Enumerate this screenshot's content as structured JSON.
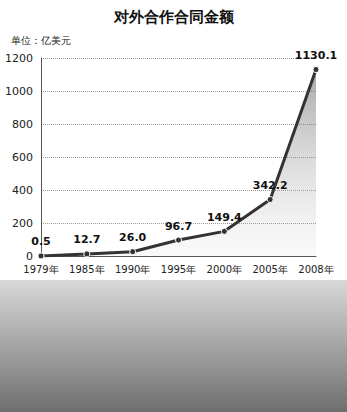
{
  "chart_data": {
    "type": "line",
    "title": "对外合作合同金额",
    "ylabel": "单位：亿美元",
    "categories": [
      "1979年",
      "1985年",
      "1990年",
      "1995年",
      "2000年",
      "2005年",
      "2008年"
    ],
    "values": [
      0.5,
      12.7,
      26.0,
      96.7,
      149.4,
      342.2,
      1130.1
    ],
    "value_labels": [
      "0.5",
      "12.7",
      "26.0",
      "96.7",
      "149.4",
      "342.2",
      "1130.1"
    ],
    "color": "#333333",
    "ylim": [
      0,
      1200
    ],
    "yticks": [
      0,
      200,
      400,
      600,
      800,
      1000,
      1200
    ],
    "grid": true,
    "data_labels": true,
    "marker": "circle"
  }
}
